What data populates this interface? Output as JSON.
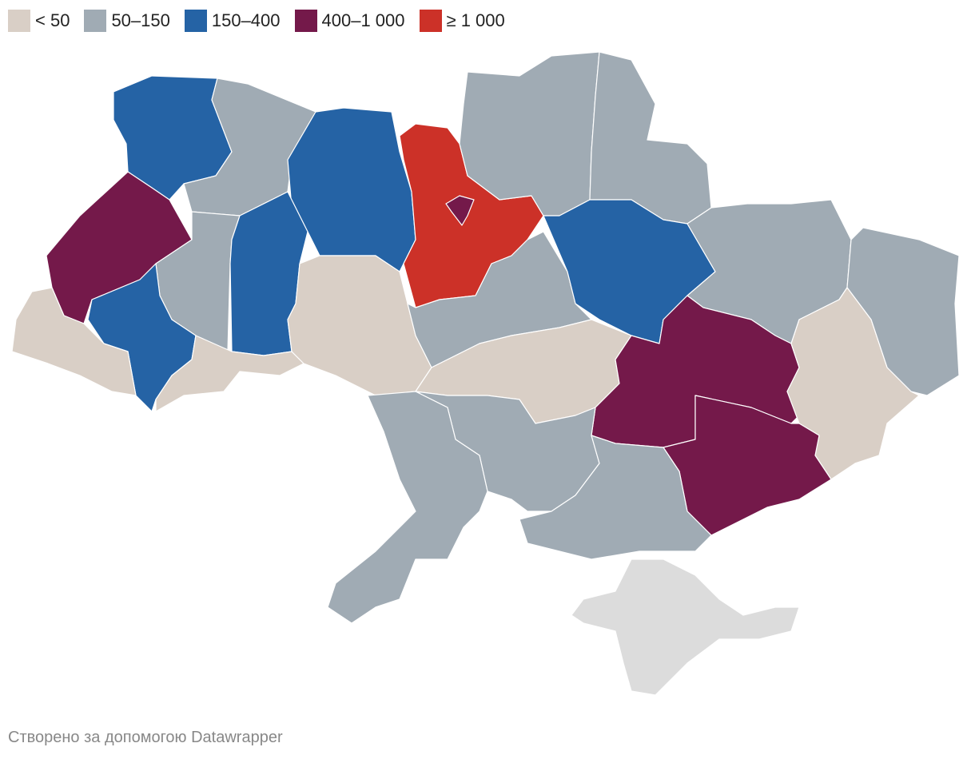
{
  "legend": [
    {
      "label": "< 50",
      "color": "#d9cfc6"
    },
    {
      "label": "50–150",
      "color": "#a0abb4"
    },
    {
      "label": "150–400",
      "color": "#2563a5"
    },
    {
      "label": "400–1 000",
      "color": "#74194a"
    },
    {
      "label": "≥ 1 000",
      "color": "#cc3128"
    }
  ],
  "footer": "Створено за допомогою Datawrapper"
}
